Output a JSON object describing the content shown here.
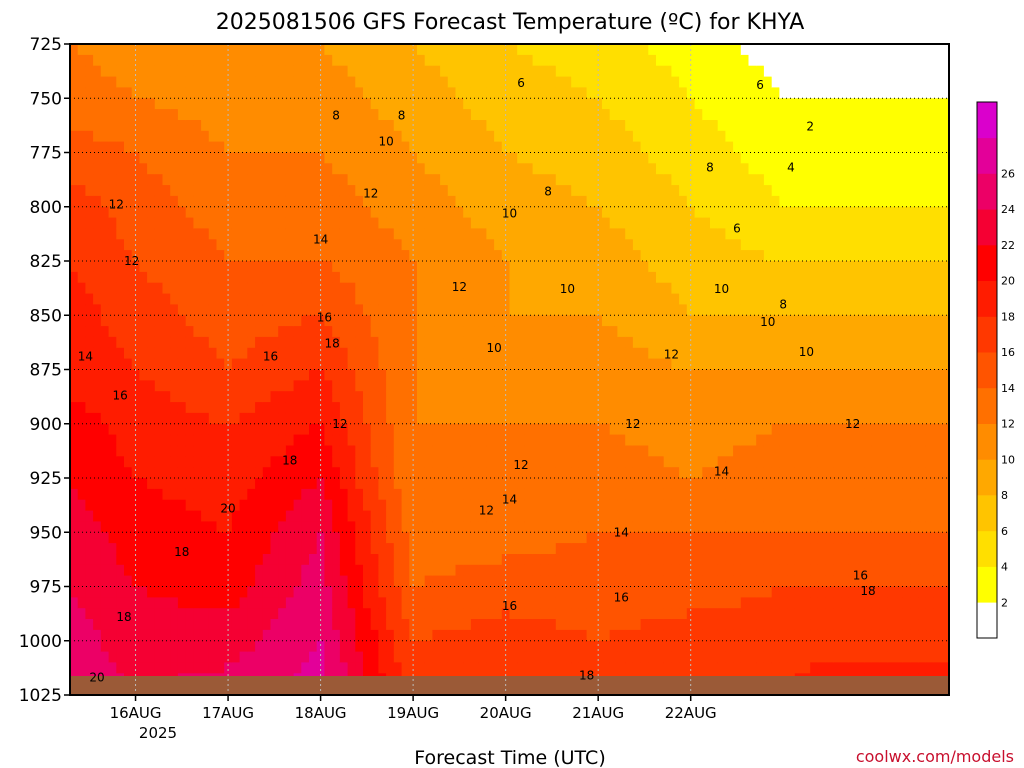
{
  "chart_data": {
    "type": "heatmap",
    "title": "2025081506 GFS Forecast Temperature (ºC) for KHYA",
    "xlabel": "Forecast Time (UTC)",
    "ylabel": "",
    "credit": "coolwx.com/models",
    "y_ticks": [
      "725",
      "750",
      "775",
      "800",
      "825",
      "850",
      "875",
      "900",
      "925",
      "950",
      "975",
      "1000",
      "1025"
    ],
    "y_values": [
      725,
      750,
      775,
      800,
      825,
      850,
      875,
      900,
      925,
      950,
      975,
      1000,
      1025
    ],
    "ylim": [
      1025,
      725
    ],
    "x_ticks": [
      "16AUG",
      "17AUG",
      "18AUG",
      "19AUG",
      "20AUG",
      "21AUG",
      "22AUG"
    ],
    "x_year_label": "2025",
    "xlim_hours": [
      -17,
      211
    ],
    "x_tick_hours": [
      0,
      24,
      48,
      72,
      96,
      120,
      144
    ],
    "grid": true,
    "colorbar": {
      "labels": [
        "2",
        "4",
        "6",
        "8",
        "10",
        "12",
        "14",
        "16",
        "18",
        "20",
        "22",
        "24",
        "26"
      ],
      "levels": [
        2,
        4,
        6,
        8,
        10,
        12,
        14,
        16,
        18,
        20,
        22,
        24,
        26,
        28
      ],
      "colors": [
        "#ffff00",
        "#ffdf00",
        "#ffc400",
        "#ffa800",
        "#ff8c00",
        "#ff7000",
        "#ff5400",
        "#ff3800",
        "#ff1c00",
        "#ff0000",
        "#f50033",
        "#ec0066",
        "#e30099",
        "#da00cc"
      ]
    },
    "field_columns": [
      {
        "t": -17,
        "T": [
          12,
          13,
          15,
          17,
          18,
          19,
          19,
          21,
          22,
          23,
          24,
          25,
          25
        ]
      },
      {
        "t": 0,
        "T": [
          11,
          12,
          14,
          15,
          16,
          17,
          18,
          19,
          20,
          21,
          22,
          23,
          24
        ]
      },
      {
        "t": 24,
        "T": [
          10,
          11,
          12,
          13,
          14,
          15,
          16,
          18,
          19,
          20,
          21,
          23,
          25
        ]
      },
      {
        "t": 48,
        "T": [
          10,
          11,
          12,
          13,
          14,
          16,
          18,
          20,
          22,
          24,
          25,
          26,
          27
        ]
      },
      {
        "t": 72,
        "T": [
          8,
          9,
          10,
          11,
          12,
          12,
          12,
          12,
          12,
          13,
          14,
          16,
          17
        ]
      },
      {
        "t": 96,
        "T": [
          6,
          7,
          8,
          9,
          10,
          10,
          11,
          12,
          12,
          13,
          15,
          17,
          18
        ]
      },
      {
        "t": 120,
        "T": [
          5,
          6,
          7,
          8,
          9,
          10,
          11,
          12,
          13,
          14,
          15,
          16,
          18
        ]
      },
      {
        "t": 144,
        "T": [
          3,
          4,
          5,
          6,
          7,
          8,
          10,
          11,
          12,
          14,
          15,
          17,
          18
        ]
      },
      {
        "t": 168,
        "T": [
          1,
          2,
          3,
          4,
          6,
          8,
          10,
          12,
          13,
          14,
          16,
          17,
          18
        ]
      },
      {
        "t": 175,
        "T": [
          1,
          2,
          3,
          4,
          6,
          8,
          10,
          12,
          13,
          14,
          16,
          17,
          19
        ]
      }
    ],
    "contour_labels": [
      {
        "t": 100,
        "p": 743,
        "text": "6"
      },
      {
        "t": 162,
        "p": 744,
        "text": "6"
      },
      {
        "t": 175,
        "p": 763,
        "text": "2"
      },
      {
        "t": 170,
        "p": 782,
        "text": "4"
      },
      {
        "t": 156,
        "p": 810,
        "text": "6"
      },
      {
        "t": 52,
        "p": 758,
        "text": "8"
      },
      {
        "t": 69,
        "p": 758,
        "text": "8"
      },
      {
        "t": 107,
        "p": 793,
        "text": "8"
      },
      {
        "t": 168,
        "p": 845,
        "text": "8"
      },
      {
        "t": 149,
        "p": 782,
        "text": "8"
      },
      {
        "t": 65,
        "p": 770,
        "text": "10"
      },
      {
        "t": 97,
        "p": 803,
        "text": "10"
      },
      {
        "t": 112,
        "p": 838,
        "text": "10"
      },
      {
        "t": 93,
        "p": 865,
        "text": "10"
      },
      {
        "t": 152,
        "p": 838,
        "text": "10"
      },
      {
        "t": 164,
        "p": 853,
        "text": "10"
      },
      {
        "t": 174,
        "p": 867,
        "text": "10"
      },
      {
        "t": -5,
        "p": 799,
        "text": "12"
      },
      {
        "t": 61,
        "p": 794,
        "text": "12"
      },
      {
        "t": -1,
        "p": 825,
        "text": "12"
      },
      {
        "t": 84,
        "p": 837,
        "text": "12"
      },
      {
        "t": 53,
        "p": 900,
        "text": "12"
      },
      {
        "t": 100,
        "p": 919,
        "text": "12"
      },
      {
        "t": 129,
        "p": 900,
        "text": "12"
      },
      {
        "t": 139,
        "p": 868,
        "text": "12"
      },
      {
        "t": 91,
        "p": 940,
        "text": "12"
      },
      {
        "t": 186,
        "p": 900,
        "text": "12"
      },
      {
        "t": 48,
        "p": 815,
        "text": "14"
      },
      {
        "t": -13,
        "p": 869,
        "text": "14"
      },
      {
        "t": 97,
        "p": 935,
        "text": "14"
      },
      {
        "t": 126,
        "p": 950,
        "text": "14"
      },
      {
        "t": 152,
        "p": 922,
        "text": "14"
      },
      {
        "t": -4,
        "p": 887,
        "text": "16"
      },
      {
        "t": 35,
        "p": 869,
        "text": "16"
      },
      {
        "t": 49,
        "p": 851,
        "text": "16"
      },
      {
        "t": 97,
        "p": 984,
        "text": "16"
      },
      {
        "t": 126,
        "p": 980,
        "text": "16"
      },
      {
        "t": 188,
        "p": 970,
        "text": "16"
      },
      {
        "t": 51,
        "p": 863,
        "text": "18"
      },
      {
        "t": 40,
        "p": 917,
        "text": "18"
      },
      {
        "t": 12,
        "p": 959,
        "text": "18"
      },
      {
        "t": -3,
        "p": 989,
        "text": "18"
      },
      {
        "t": 117,
        "p": 1016,
        "text": "18"
      },
      {
        "t": 190,
        "p": 977,
        "text": "18"
      },
      {
        "t": 24,
        "p": 939,
        "text": "20"
      },
      {
        "t": -10,
        "p": 1017,
        "text": "20"
      }
    ]
  }
}
